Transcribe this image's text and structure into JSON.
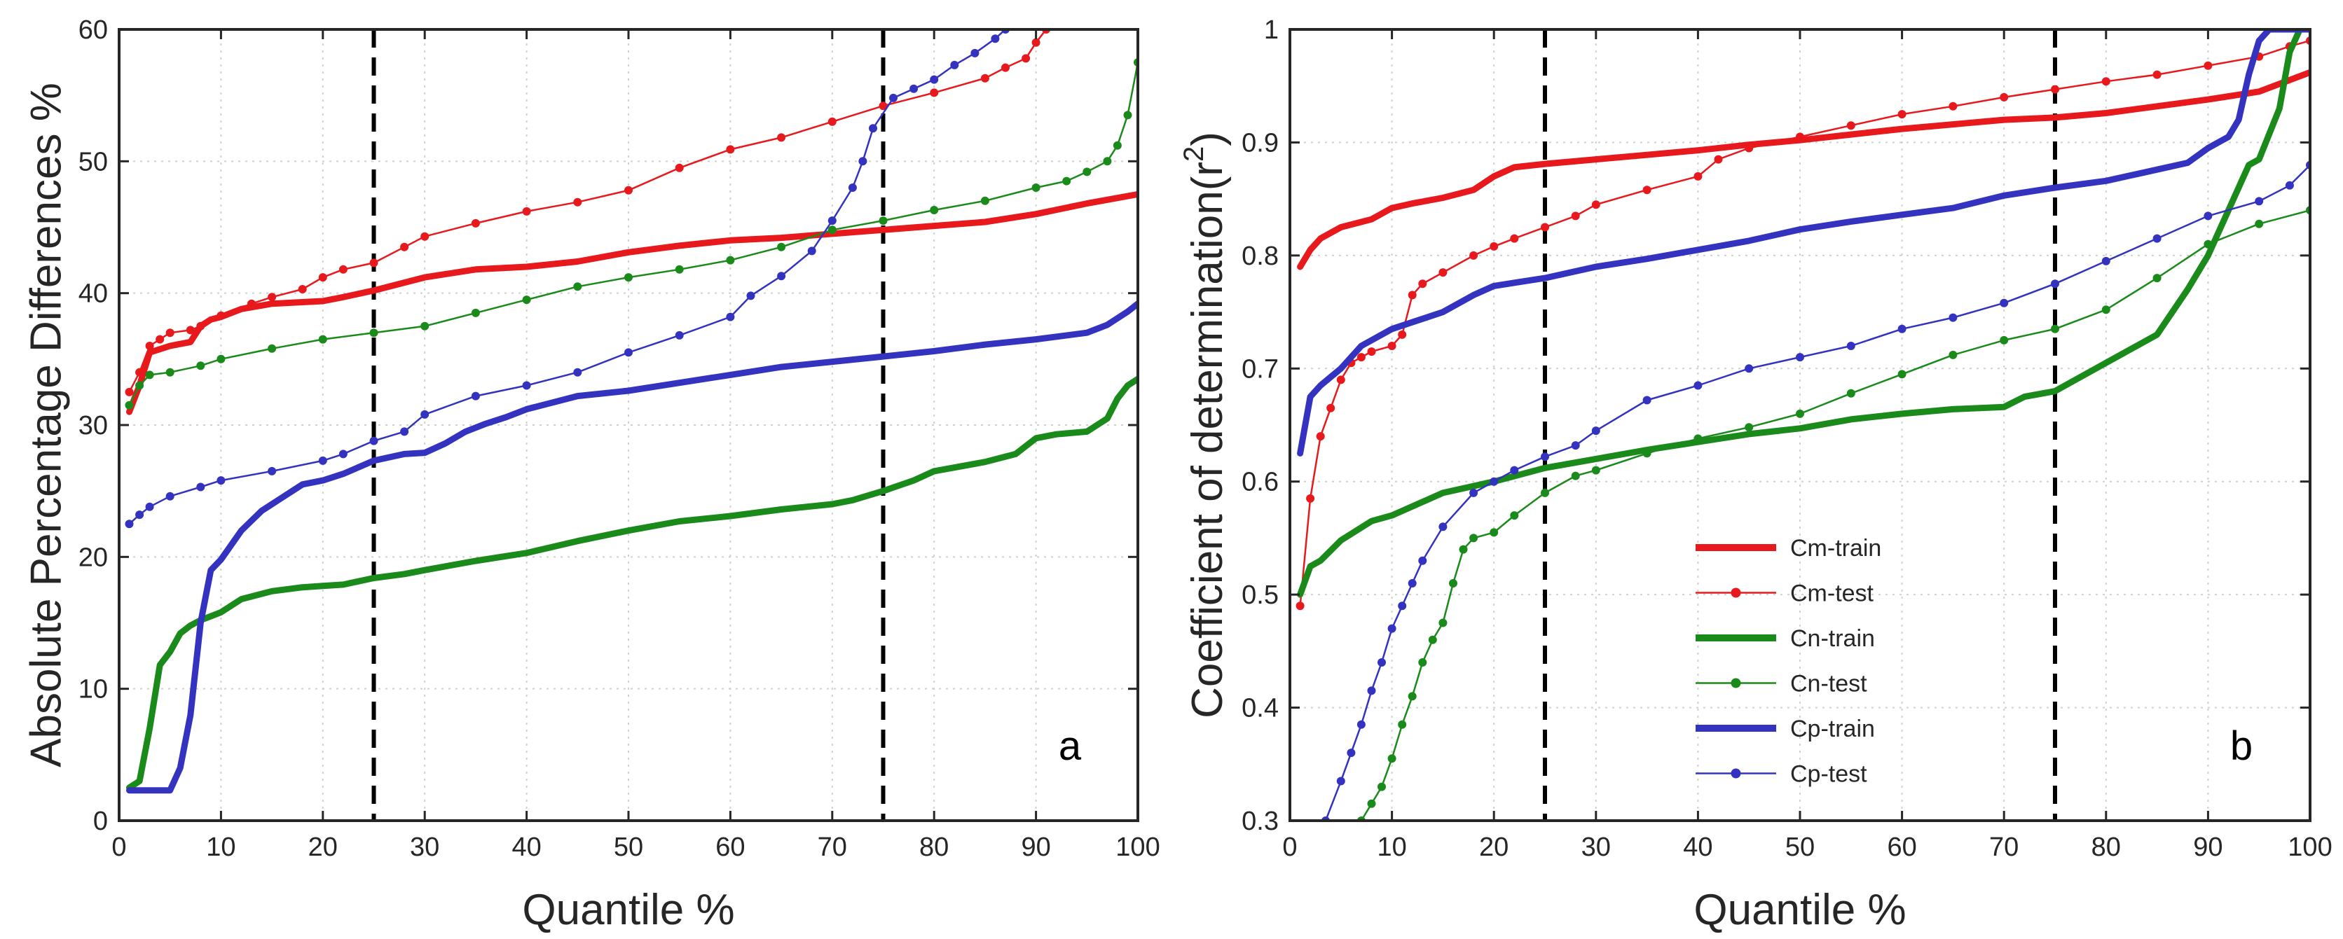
{
  "colors": {
    "red": "#e8191d",
    "green": "#1a8a1a",
    "blue": "#3333c0",
    "axis": "#262626",
    "grid": "#cfcfcf",
    "vline": "#000000"
  },
  "legend": [
    {
      "id": "cm-train",
      "label": "Cm-train",
      "color": "#e8191d",
      "style": "thick"
    },
    {
      "id": "cm-test",
      "label": "Cm-test",
      "color": "#e8191d",
      "style": "thin-dots"
    },
    {
      "id": "cn-train",
      "label": "Cn-train",
      "color": "#1a8a1a",
      "style": "thick"
    },
    {
      "id": "cn-test",
      "label": "Cn-test",
      "color": "#1a8a1a",
      "style": "thin-dots"
    },
    {
      "id": "cp-train",
      "label": "Cp-train",
      "color": "#3333c0",
      "style": "thick"
    },
    {
      "id": "cp-test",
      "label": "Cp-test",
      "color": "#3333c0",
      "style": "thin-dots"
    }
  ],
  "chart_data": [
    {
      "id": "a",
      "type": "line",
      "panel_label": "a",
      "xlabel": "Quantile %",
      "ylabel": "Absolute Percentage Differences %",
      "xlim": [
        0,
        100
      ],
      "ylim": [
        0,
        60
      ],
      "xticks": [
        0,
        10,
        20,
        30,
        40,
        50,
        60,
        70,
        80,
        90,
        100
      ],
      "yticks": [
        0,
        10,
        20,
        30,
        40,
        50,
        60
      ],
      "grid": true,
      "vlines": [
        25,
        75
      ],
      "series": [
        {
          "name": "Cm-train",
          "color": "#e8191d",
          "style": "thick",
          "x": [
            1,
            2,
            3,
            5,
            7,
            8,
            9,
            10,
            12,
            15,
            20,
            22,
            25,
            30,
            35,
            40,
            45,
            50,
            55,
            60,
            65,
            70,
            75,
            80,
            85,
            90,
            95,
            100
          ],
          "y": [
            31,
            33,
            35.5,
            36,
            36.3,
            37.5,
            38,
            38.2,
            38.8,
            39.2,
            39.4,
            39.7,
            40.2,
            41.2,
            41.8,
            42,
            42.4,
            43.1,
            43.6,
            44,
            44.2,
            44.5,
            44.8,
            45.1,
            45.4,
            46,
            46.8,
            47.5
          ]
        },
        {
          "name": "Cm-test",
          "color": "#e8191d",
          "style": "thin-dots",
          "x": [
            1,
            2,
            3,
            4,
            5,
            7,
            8,
            10,
            13,
            15,
            18,
            20,
            22,
            25,
            28,
            30,
            35,
            40,
            45,
            50,
            55,
            60,
            65,
            70,
            75,
            80,
            85,
            87,
            89,
            90,
            91
          ],
          "y": [
            32.5,
            34,
            36,
            36.5,
            37,
            37.2,
            37.5,
            38.3,
            39.2,
            39.7,
            40.3,
            41.2,
            41.8,
            42.3,
            43.5,
            44.3,
            45.3,
            46.2,
            46.9,
            47.8,
            49.5,
            50.9,
            51.8,
            53,
            54.2,
            55.2,
            56.3,
            57.1,
            57.8,
            59,
            60
          ]
        },
        {
          "name": "Cn-train",
          "color": "#1a8a1a",
          "style": "thick",
          "x": [
            1,
            2,
            3,
            4,
            5,
            6,
            7,
            8,
            10,
            12,
            15,
            18,
            20,
            22,
            25,
            28,
            30,
            35,
            40,
            45,
            50,
            55,
            60,
            65,
            70,
            72,
            75,
            78,
            80,
            85,
            88,
            90,
            92,
            95,
            97,
            98,
            99,
            100
          ],
          "y": [
            2.5,
            3,
            7,
            11.8,
            12.8,
            14.2,
            14.8,
            15.2,
            15.8,
            16.8,
            17.4,
            17.7,
            17.8,
            17.9,
            18.4,
            18.7,
            19,
            19.7,
            20.3,
            21.2,
            22,
            22.7,
            23.1,
            23.6,
            24,
            24.3,
            25,
            25.8,
            26.5,
            27.2,
            27.8,
            29,
            29.3,
            29.5,
            30.5,
            32,
            33,
            33.5
          ]
        },
        {
          "name": "Cn-test",
          "color": "#1a8a1a",
          "style": "thin-dots",
          "x": [
            1,
            2,
            3,
            5,
            8,
            10,
            15,
            20,
            25,
            30,
            35,
            40,
            45,
            50,
            55,
            60,
            65,
            70,
            75,
            80,
            85,
            90,
            93,
            95,
            97,
            98,
            99,
            100
          ],
          "y": [
            31.5,
            33,
            33.8,
            34,
            34.5,
            35,
            35.8,
            36.5,
            37,
            37.5,
            38.5,
            39.5,
            40.5,
            41.2,
            41.8,
            42.5,
            43.5,
            44.8,
            45.5,
            46.3,
            47,
            48,
            48.5,
            49.2,
            50,
            51.2,
            53.5,
            57.5
          ]
        },
        {
          "name": "Cp-train",
          "color": "#3333c0",
          "style": "thick",
          "x": [
            1,
            2,
            3,
            4,
            5,
            6,
            7,
            8,
            9,
            10,
            12,
            14,
            16,
            18,
            20,
            22,
            25,
            28,
            30,
            32,
            34,
            36,
            38,
            40,
            45,
            50,
            55,
            60,
            65,
            70,
            75,
            80,
            85,
            90,
            95,
            97,
            99,
            100
          ],
          "y": [
            2.3,
            2.3,
            2.3,
            2.3,
            2.3,
            4,
            8,
            15,
            19,
            19.8,
            22,
            23.5,
            24.5,
            25.5,
            25.8,
            26.3,
            27.3,
            27.8,
            27.9,
            28.6,
            29.5,
            30.1,
            30.6,
            31.2,
            32.2,
            32.6,
            33.2,
            33.8,
            34.4,
            34.8,
            35.2,
            35.6,
            36.1,
            36.5,
            37,
            37.6,
            38.6,
            39.2
          ]
        },
        {
          "name": "Cp-test",
          "color": "#3333c0",
          "style": "thin-dots",
          "x": [
            1,
            2,
            3,
            5,
            8,
            10,
            15,
            20,
            22,
            25,
            28,
            30,
            35,
            40,
            45,
            50,
            55,
            60,
            62,
            65,
            68,
            70,
            72,
            73,
            74,
            76,
            78,
            80,
            82,
            84,
            86,
            87
          ],
          "y": [
            22.5,
            23.2,
            23.8,
            24.6,
            25.3,
            25.8,
            26.5,
            27.3,
            27.8,
            28.8,
            29.5,
            30.8,
            32.2,
            33,
            34,
            35.5,
            36.8,
            38.2,
            39.8,
            41.3,
            43.2,
            45.5,
            48,
            50,
            52.5,
            54.8,
            55.5,
            56.2,
            57.3,
            58.2,
            59.3,
            60
          ]
        }
      ]
    },
    {
      "id": "b",
      "type": "line",
      "panel_label": "b",
      "xlabel": "Quantile %",
      "ylabel": "Coefficient of determination(r",
      "ylabel_sup": "2",
      "ylabel_end": ")",
      "xlim": [
        0,
        100
      ],
      "ylim": [
        0.3,
        1
      ],
      "xticks": [
        0,
        10,
        20,
        30,
        40,
        50,
        60,
        70,
        80,
        90,
        100
      ],
      "yticks": [
        0.3,
        0.4,
        0.5,
        0.6,
        0.7,
        0.8,
        0.9,
        1
      ],
      "ytick_labels": [
        "0.3",
        "0.4",
        "0.5",
        "0.6",
        "0.7",
        "0.8",
        "0.9",
        "1"
      ],
      "grid": true,
      "vlines": [
        25,
        75
      ],
      "legend_position": "center",
      "series": [
        {
          "name": "Cm-train",
          "color": "#e8191d",
          "style": "thick",
          "x": [
            1,
            2,
            3,
            5,
            8,
            10,
            12,
            15,
            18,
            20,
            22,
            25,
            30,
            35,
            40,
            45,
            50,
            55,
            60,
            65,
            70,
            75,
            80,
            85,
            90,
            95,
            100
          ],
          "y": [
            0.79,
            0.805,
            0.815,
            0.825,
            0.832,
            0.842,
            0.846,
            0.851,
            0.858,
            0.87,
            0.878,
            0.881,
            0.885,
            0.889,
            0.893,
            0.898,
            0.902,
            0.907,
            0.912,
            0.916,
            0.92,
            0.922,
            0.926,
            0.932,
            0.938,
            0.945,
            0.962
          ]
        },
        {
          "name": "Cm-test",
          "color": "#e8191d",
          "style": "thin-dots",
          "x": [
            1,
            2,
            3,
            4,
            5,
            6,
            7,
            8,
            10,
            11,
            12,
            13,
            15,
            18,
            20,
            22,
            25,
            28,
            30,
            35,
            40,
            42,
            45,
            50,
            55,
            60,
            65,
            70,
            75,
            80,
            85,
            90,
            95,
            98,
            100
          ],
          "y": [
            0.49,
            0.585,
            0.64,
            0.665,
            0.69,
            0.705,
            0.71,
            0.715,
            0.72,
            0.73,
            0.765,
            0.775,
            0.785,
            0.8,
            0.808,
            0.815,
            0.825,
            0.835,
            0.845,
            0.858,
            0.87,
            0.885,
            0.895,
            0.905,
            0.915,
            0.925,
            0.932,
            0.94,
            0.947,
            0.954,
            0.96,
            0.968,
            0.976,
            0.985,
            0.99
          ]
        },
        {
          "name": "Cn-train",
          "color": "#1a8a1a",
          "style": "thick",
          "x": [
            1,
            2,
            3,
            5,
            8,
            10,
            15,
            20,
            25,
            30,
            35,
            40,
            45,
            50,
            55,
            60,
            65,
            70,
            72,
            75,
            80,
            85,
            88,
            90,
            92,
            94,
            95,
            97,
            98,
            99,
            100
          ],
          "y": [
            0.5,
            0.525,
            0.53,
            0.548,
            0.565,
            0.57,
            0.59,
            0.6,
            0.612,
            0.62,
            0.628,
            0.635,
            0.642,
            0.647,
            0.655,
            0.66,
            0.664,
            0.666,
            0.675,
            0.68,
            0.705,
            0.73,
            0.77,
            0.8,
            0.84,
            0.88,
            0.885,
            0.93,
            0.98,
            1,
            1
          ]
        },
        {
          "name": "Cn-test",
          "color": "#1a8a1a",
          "style": "thin-dots",
          "x": [
            7,
            8,
            9,
            10,
            11,
            12,
            13,
            14,
            15,
            16,
            17,
            18,
            20,
            22,
            25,
            28,
            30,
            35,
            40,
            45,
            50,
            55,
            60,
            65,
            70,
            75,
            80,
            85,
            90,
            95,
            100
          ],
          "y": [
            0.3,
            0.315,
            0.33,
            0.355,
            0.385,
            0.41,
            0.44,
            0.46,
            0.475,
            0.51,
            0.54,
            0.55,
            0.555,
            0.57,
            0.59,
            0.605,
            0.61,
            0.625,
            0.638,
            0.648,
            0.66,
            0.678,
            0.695,
            0.712,
            0.725,
            0.735,
            0.752,
            0.78,
            0.81,
            0.828,
            0.84
          ]
        },
        {
          "name": "Cp-train",
          "color": "#3333c0",
          "style": "thick",
          "x": [
            1,
            2,
            3,
            5,
            7,
            10,
            15,
            18,
            20,
            25,
            30,
            35,
            40,
            45,
            50,
            55,
            60,
            65,
            70,
            75,
            80,
            85,
            88,
            90,
            92,
            93,
            94,
            95,
            96,
            97,
            98,
            100
          ],
          "y": [
            0.625,
            0.675,
            0.685,
            0.7,
            0.72,
            0.735,
            0.75,
            0.765,
            0.773,
            0.78,
            0.79,
            0.797,
            0.805,
            0.813,
            0.823,
            0.83,
            0.836,
            0.842,
            0.853,
            0.86,
            0.866,
            0.876,
            0.882,
            0.895,
            0.905,
            0.92,
            0.96,
            0.99,
            1,
            1,
            1,
            1
          ]
        },
        {
          "name": "Cp-test",
          "color": "#3333c0",
          "style": "thin-dots",
          "x": [
            3.5,
            5,
            6,
            7,
            8,
            9,
            10,
            11,
            12,
            13,
            15,
            18,
            20,
            22,
            25,
            28,
            30,
            35,
            40,
            45,
            50,
            55,
            60,
            65,
            70,
            75,
            80,
            85,
            90,
            95,
            98,
            100
          ],
          "y": [
            0.3,
            0.335,
            0.36,
            0.385,
            0.415,
            0.44,
            0.47,
            0.49,
            0.51,
            0.53,
            0.56,
            0.59,
            0.6,
            0.61,
            0.622,
            0.632,
            0.645,
            0.672,
            0.685,
            0.7,
            0.71,
            0.72,
            0.735,
            0.745,
            0.758,
            0.775,
            0.795,
            0.815,
            0.835,
            0.848,
            0.862,
            0.88
          ]
        }
      ]
    }
  ]
}
